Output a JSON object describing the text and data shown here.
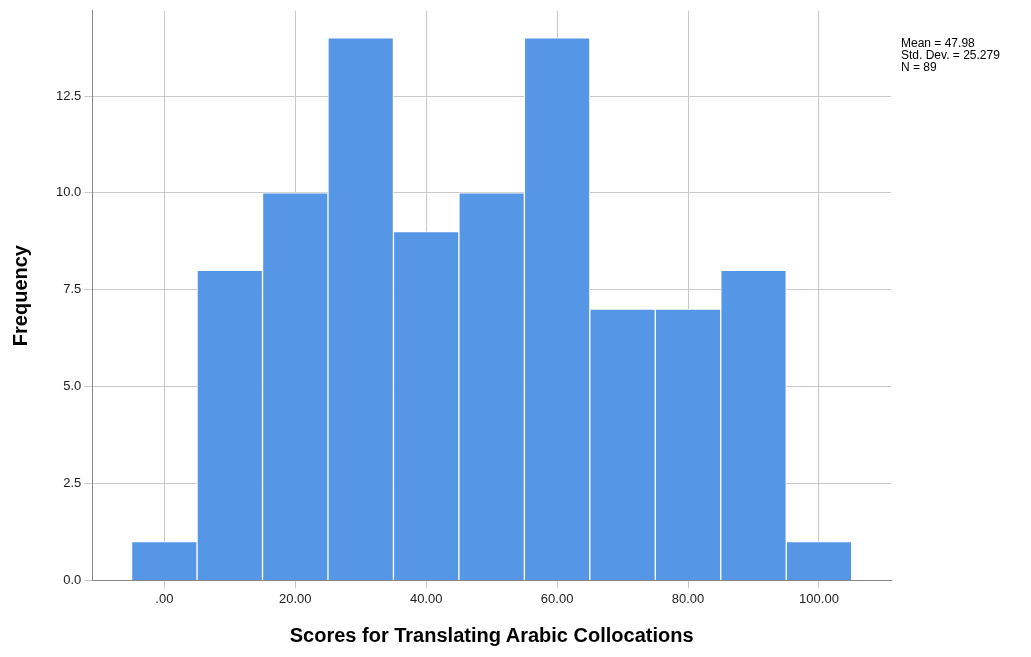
{
  "chart_data": {
    "type": "histogram",
    "xlabel": "Scores for Translating Arabic Collocations",
    "ylabel": "Frequency",
    "bins": [
      -5,
      5,
      15,
      25,
      35,
      45,
      55,
      65,
      75,
      85,
      95,
      105
    ],
    "values": [
      1,
      8,
      10,
      14,
      9,
      10,
      14,
      7,
      7,
      8,
      1
    ],
    "color": "#5596e6",
    "xlim": [
      -11,
      111
    ],
    "xticks": [
      {
        "value": 0,
        "label": ".00"
      },
      {
        "value": 20,
        "label": "20.00"
      },
      {
        "value": 40,
        "label": "40.00"
      },
      {
        "value": 60,
        "label": "60.00"
      },
      {
        "value": 80,
        "label": "80.00"
      },
      {
        "value": 100,
        "label": "100.00"
      }
    ],
    "ylim": [
      0,
      14.7
    ],
    "yticks": [
      {
        "value": 0,
        "label": "0.0"
      },
      {
        "value": 2.5,
        "label": "2.5"
      },
      {
        "value": 5,
        "label": "5.0"
      },
      {
        "value": 7.5,
        "label": "7.5"
      },
      {
        "value": 10,
        "label": "10.0"
      },
      {
        "value": 12.5,
        "label": "12.5"
      }
    ],
    "grid": true,
    "annotations": [
      "Mean = 47.98",
      "Std. Dev. = 25.279",
      "N = 89"
    ]
  }
}
